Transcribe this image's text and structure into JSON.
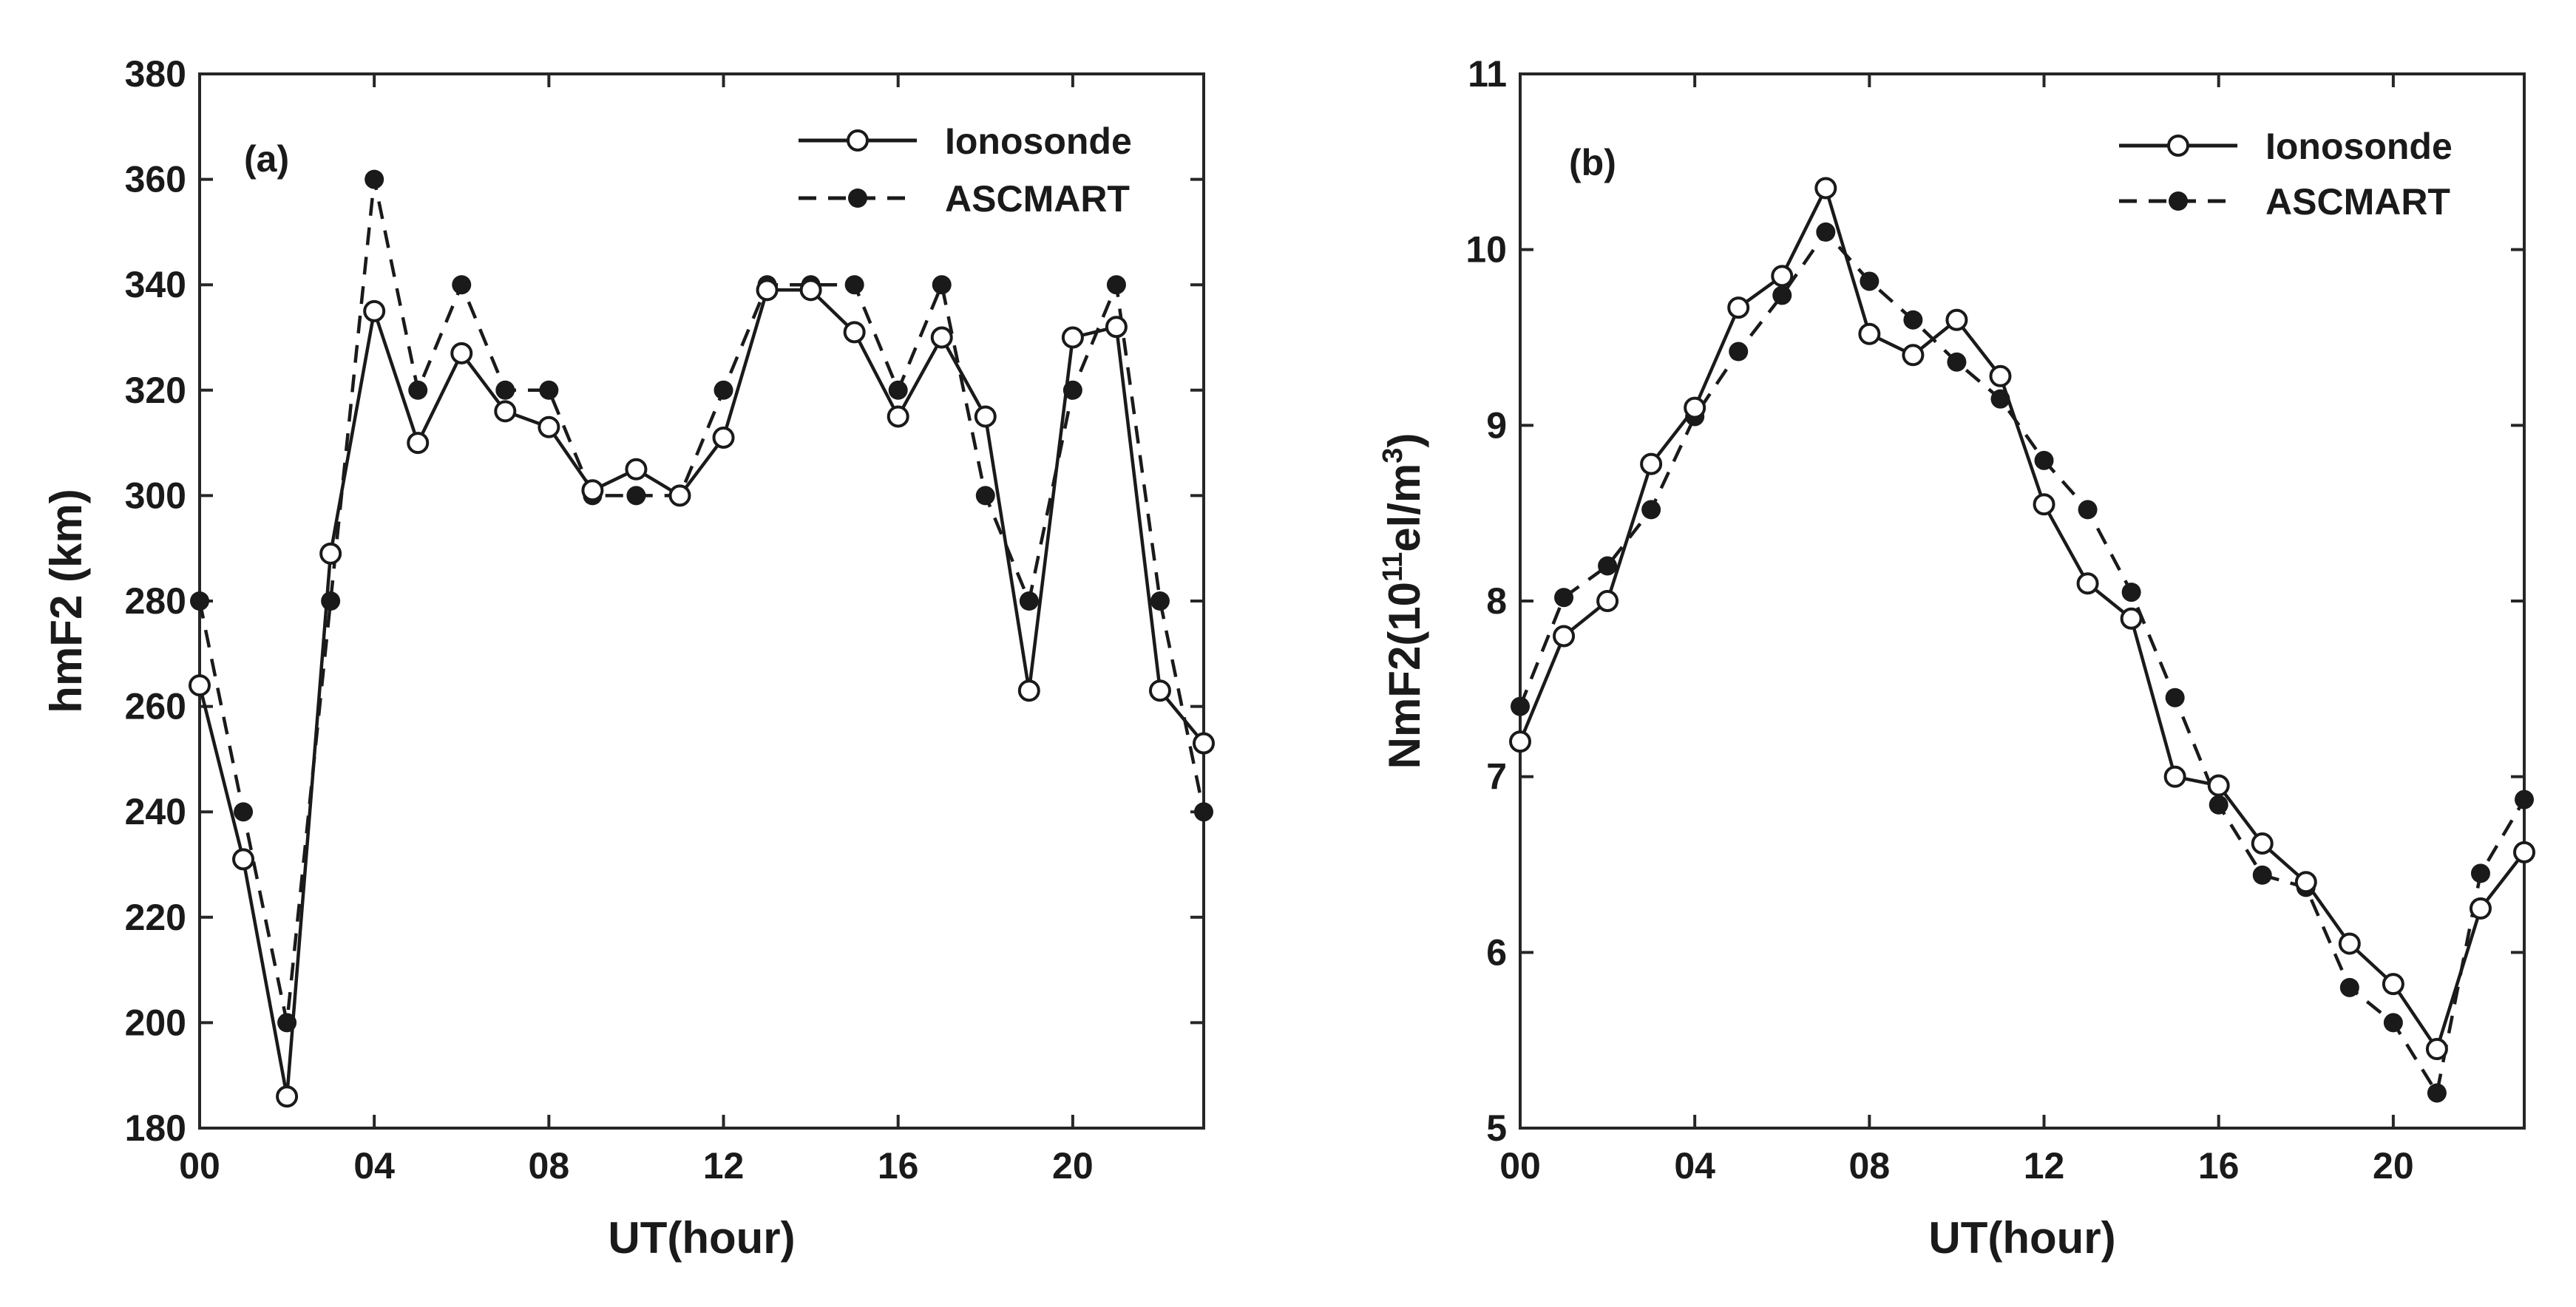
{
  "chart_data": [
    {
      "type": "line",
      "panel_label": "(a)",
      "xlabel": "UT(hour)",
      "ylabel": "hmF2 (km)",
      "xlim": [
        0,
        23
      ],
      "ylim": [
        180,
        380
      ],
      "xticks": [
        0,
        4,
        8,
        12,
        16,
        20
      ],
      "xtick_labels": [
        "00",
        "04",
        "08",
        "12",
        "16",
        "20"
      ],
      "yticks": [
        180,
        200,
        220,
        240,
        260,
        280,
        300,
        320,
        340,
        360,
        380
      ],
      "ytick_labels": [
        "180",
        "200",
        "220",
        "240",
        "260",
        "280",
        "300",
        "320",
        "340",
        "360",
        "380"
      ],
      "legend_position": "top-right",
      "x": [
        0,
        1,
        2,
        3,
        4,
        5,
        6,
        7,
        8,
        9,
        10,
        11,
        12,
        13,
        14,
        15,
        16,
        17,
        18,
        19,
        20,
        21,
        22,
        23
      ],
      "series": [
        {
          "name": "Ionosonde",
          "style": "solid",
          "marker": "open-circle",
          "values": [
            264,
            231,
            186,
            289,
            335,
            310,
            327,
            316,
            313,
            301,
            305,
            300,
            311,
            339,
            339,
            331,
            315,
            330,
            315,
            263,
            330,
            332,
            263,
            253
          ]
        },
        {
          "name": "ASCMART",
          "style": "dashed",
          "marker": "filled-circle",
          "values": [
            280,
            240,
            200,
            280,
            360,
            320,
            340,
            320,
            320,
            300,
            300,
            300,
            320,
            340,
            340,
            340,
            320,
            340,
            300,
            280,
            320,
            340,
            280,
            240
          ]
        }
      ]
    },
    {
      "type": "line",
      "panel_label": "(b)",
      "xlabel": "UT(hour)",
      "ylabel_parts": [
        "NmF2(10",
        "11",
        "el/m",
        "3",
        ")"
      ],
      "xlim": [
        0,
        23
      ],
      "ylim": [
        5,
        11
      ],
      "xticks": [
        0,
        4,
        8,
        12,
        16,
        20
      ],
      "xtick_labels": [
        "00",
        "04",
        "08",
        "12",
        "16",
        "20"
      ],
      "yticks": [
        5,
        6,
        7,
        8,
        9,
        10,
        11
      ],
      "ytick_labels": [
        "5",
        "6",
        "7",
        "8",
        "9",
        "10",
        "11"
      ],
      "legend_position": "top-right",
      "x": [
        0,
        1,
        2,
        3,
        4,
        5,
        6,
        7,
        8,
        9,
        10,
        11,
        12,
        13,
        14,
        15,
        16,
        17,
        18,
        19,
        20,
        21,
        22,
        23
      ],
      "series": [
        {
          "name": "Ionosonde",
          "style": "solid",
          "marker": "open-circle",
          "values": [
            7.2,
            7.8,
            8.0,
            8.78,
            9.1,
            9.67,
            9.85,
            10.35,
            9.52,
            9.4,
            9.6,
            9.28,
            8.55,
            8.1,
            7.9,
            7.0,
            6.95,
            6.62,
            6.4,
            6.05,
            5.82,
            5.45,
            6.25,
            6.57
          ]
        },
        {
          "name": "ASCMART",
          "style": "dashed",
          "marker": "filled-circle",
          "values": [
            7.4,
            8.02,
            8.2,
            8.52,
            9.05,
            9.42,
            9.74,
            10.1,
            9.82,
            9.6,
            9.36,
            9.15,
            8.8,
            8.52,
            8.05,
            7.45,
            6.84,
            6.44,
            6.37,
            5.8,
            5.6,
            5.2,
            6.45,
            6.87
          ]
        }
      ]
    }
  ]
}
